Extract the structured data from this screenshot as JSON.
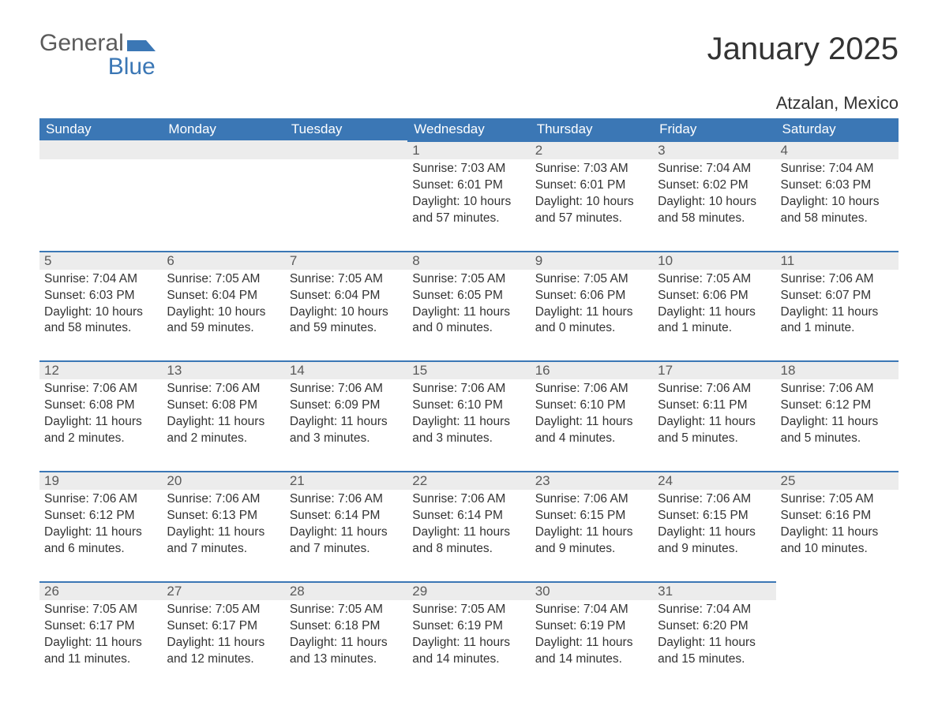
{
  "logo": {
    "general": "General",
    "blue": "Blue",
    "shape_color": "#3b77b5"
  },
  "header": {
    "month_title": "January 2025",
    "location": "Atzalan, Mexico"
  },
  "colors": {
    "header_bg": "#3b77b5",
    "header_text": "#ffffff",
    "daynum_bg": "#ececec",
    "daynum_border": "#3b77b5",
    "body_text": "#333333",
    "logo_gray": "#5b5b5b",
    "logo_blue": "#3b77b5"
  },
  "typography": {
    "month_title_fontsize": 40,
    "location_fontsize": 22,
    "day_header_fontsize": 17,
    "daynum_fontsize": 17,
    "body_fontsize": 15.5
  },
  "calendar": {
    "day_names": [
      "Sunday",
      "Monday",
      "Tuesday",
      "Wednesday",
      "Thursday",
      "Friday",
      "Saturday"
    ],
    "weeks": [
      [
        null,
        null,
        null,
        {
          "n": "1",
          "sr": "Sunrise: 7:03 AM",
          "ss": "Sunset: 6:01 PM",
          "d1": "Daylight: 10 hours",
          "d2": "and 57 minutes."
        },
        {
          "n": "2",
          "sr": "Sunrise: 7:03 AM",
          "ss": "Sunset: 6:01 PM",
          "d1": "Daylight: 10 hours",
          "d2": "and 57 minutes."
        },
        {
          "n": "3",
          "sr": "Sunrise: 7:04 AM",
          "ss": "Sunset: 6:02 PM",
          "d1": "Daylight: 10 hours",
          "d2": "and 58 minutes."
        },
        {
          "n": "4",
          "sr": "Sunrise: 7:04 AM",
          "ss": "Sunset: 6:03 PM",
          "d1": "Daylight: 10 hours",
          "d2": "and 58 minutes."
        }
      ],
      [
        {
          "n": "5",
          "sr": "Sunrise: 7:04 AM",
          "ss": "Sunset: 6:03 PM",
          "d1": "Daylight: 10 hours",
          "d2": "and 58 minutes."
        },
        {
          "n": "6",
          "sr": "Sunrise: 7:05 AM",
          "ss": "Sunset: 6:04 PM",
          "d1": "Daylight: 10 hours",
          "d2": "and 59 minutes."
        },
        {
          "n": "7",
          "sr": "Sunrise: 7:05 AM",
          "ss": "Sunset: 6:04 PM",
          "d1": "Daylight: 10 hours",
          "d2": "and 59 minutes."
        },
        {
          "n": "8",
          "sr": "Sunrise: 7:05 AM",
          "ss": "Sunset: 6:05 PM",
          "d1": "Daylight: 11 hours",
          "d2": "and 0 minutes."
        },
        {
          "n": "9",
          "sr": "Sunrise: 7:05 AM",
          "ss": "Sunset: 6:06 PM",
          "d1": "Daylight: 11 hours",
          "d2": "and 0 minutes."
        },
        {
          "n": "10",
          "sr": "Sunrise: 7:05 AM",
          "ss": "Sunset: 6:06 PM",
          "d1": "Daylight: 11 hours",
          "d2": "and 1 minute."
        },
        {
          "n": "11",
          "sr": "Sunrise: 7:06 AM",
          "ss": "Sunset: 6:07 PM",
          "d1": "Daylight: 11 hours",
          "d2": "and 1 minute."
        }
      ],
      [
        {
          "n": "12",
          "sr": "Sunrise: 7:06 AM",
          "ss": "Sunset: 6:08 PM",
          "d1": "Daylight: 11 hours",
          "d2": "and 2 minutes."
        },
        {
          "n": "13",
          "sr": "Sunrise: 7:06 AM",
          "ss": "Sunset: 6:08 PM",
          "d1": "Daylight: 11 hours",
          "d2": "and 2 minutes."
        },
        {
          "n": "14",
          "sr": "Sunrise: 7:06 AM",
          "ss": "Sunset: 6:09 PM",
          "d1": "Daylight: 11 hours",
          "d2": "and 3 minutes."
        },
        {
          "n": "15",
          "sr": "Sunrise: 7:06 AM",
          "ss": "Sunset: 6:10 PM",
          "d1": "Daylight: 11 hours",
          "d2": "and 3 minutes."
        },
        {
          "n": "16",
          "sr": "Sunrise: 7:06 AM",
          "ss": "Sunset: 6:10 PM",
          "d1": "Daylight: 11 hours",
          "d2": "and 4 minutes."
        },
        {
          "n": "17",
          "sr": "Sunrise: 7:06 AM",
          "ss": "Sunset: 6:11 PM",
          "d1": "Daylight: 11 hours",
          "d2": "and 5 minutes."
        },
        {
          "n": "18",
          "sr": "Sunrise: 7:06 AM",
          "ss": "Sunset: 6:12 PM",
          "d1": "Daylight: 11 hours",
          "d2": "and 5 minutes."
        }
      ],
      [
        {
          "n": "19",
          "sr": "Sunrise: 7:06 AM",
          "ss": "Sunset: 6:12 PM",
          "d1": "Daylight: 11 hours",
          "d2": "and 6 minutes."
        },
        {
          "n": "20",
          "sr": "Sunrise: 7:06 AM",
          "ss": "Sunset: 6:13 PM",
          "d1": "Daylight: 11 hours",
          "d2": "and 7 minutes."
        },
        {
          "n": "21",
          "sr": "Sunrise: 7:06 AM",
          "ss": "Sunset: 6:14 PM",
          "d1": "Daylight: 11 hours",
          "d2": "and 7 minutes."
        },
        {
          "n": "22",
          "sr": "Sunrise: 7:06 AM",
          "ss": "Sunset: 6:14 PM",
          "d1": "Daylight: 11 hours",
          "d2": "and 8 minutes."
        },
        {
          "n": "23",
          "sr": "Sunrise: 7:06 AM",
          "ss": "Sunset: 6:15 PM",
          "d1": "Daylight: 11 hours",
          "d2": "and 9 minutes."
        },
        {
          "n": "24",
          "sr": "Sunrise: 7:06 AM",
          "ss": "Sunset: 6:15 PM",
          "d1": "Daylight: 11 hours",
          "d2": "and 9 minutes."
        },
        {
          "n": "25",
          "sr": "Sunrise: 7:05 AM",
          "ss": "Sunset: 6:16 PM",
          "d1": "Daylight: 11 hours",
          "d2": "and 10 minutes."
        }
      ],
      [
        {
          "n": "26",
          "sr": "Sunrise: 7:05 AM",
          "ss": "Sunset: 6:17 PM",
          "d1": "Daylight: 11 hours",
          "d2": "and 11 minutes."
        },
        {
          "n": "27",
          "sr": "Sunrise: 7:05 AM",
          "ss": "Sunset: 6:17 PM",
          "d1": "Daylight: 11 hours",
          "d2": "and 12 minutes."
        },
        {
          "n": "28",
          "sr": "Sunrise: 7:05 AM",
          "ss": "Sunset: 6:18 PM",
          "d1": "Daylight: 11 hours",
          "d2": "and 13 minutes."
        },
        {
          "n": "29",
          "sr": "Sunrise: 7:05 AM",
          "ss": "Sunset: 6:19 PM",
          "d1": "Daylight: 11 hours",
          "d2": "and 14 minutes."
        },
        {
          "n": "30",
          "sr": "Sunrise: 7:04 AM",
          "ss": "Sunset: 6:19 PM",
          "d1": "Daylight: 11 hours",
          "d2": "and 14 minutes."
        },
        {
          "n": "31",
          "sr": "Sunrise: 7:04 AM",
          "ss": "Sunset: 6:20 PM",
          "d1": "Daylight: 11 hours",
          "d2": "and 15 minutes."
        },
        null
      ]
    ]
  }
}
